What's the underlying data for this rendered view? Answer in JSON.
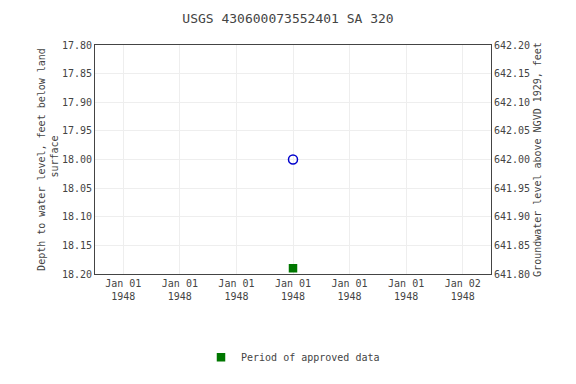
{
  "chart_data": {
    "type": "scatter",
    "title": "USGS 430600073552401 SA 320",
    "y_label": "Depth to water level, feet below land\n surface",
    "y2_label": "Groundwater level above NGVD 1929, feet",
    "categories": [
      "Jan 01\n1948",
      "Jan 01\n1948",
      "Jan 01\n1948",
      "Jan 01\n1948",
      "Jan 01\n1948",
      "Jan 01\n1948",
      "Jan 02\n1948"
    ],
    "series": [
      {
        "color": "#0000cc",
        "marker": "open circle",
        "values": [
          null,
          null,
          null,
          18.0,
          null,
          null,
          null
        ]
      },
      {
        "name": "Period of approved data",
        "color": "#007700",
        "marker": "square",
        "values": [
          null,
          null,
          null,
          18.19,
          null,
          null,
          null
        ]
      }
    ],
    "ylim": [
      18.2,
      17.8
    ],
    "yticks": [
      {
        "value": 17.8,
        "label": "17.80"
      },
      17.85,
      {
        "value": 17.9,
        "label": "17.90"
      },
      17.95,
      {
        "value": 18,
        "label": "18.00"
      },
      18.05,
      {
        "value": 18.1,
        "label": "18.10"
      },
      18.15,
      {
        "value": 18.2,
        "label": "18.20"
      }
    ],
    "y2lim": [
      641.8,
      642.2
    ],
    "y2ticks": [
      {
        "value": 642.2,
        "label": "642.20"
      },
      642.15,
      {
        "value": 642.1,
        "label": "642.10"
      },
      642.05,
      {
        "value": 642,
        "label": "642.00"
      },
      641.95,
      {
        "value": 641.9,
        "label": "641.90"
      },
      641.85,
      {
        "value": 641.8,
        "label": "641.80"
      }
    ],
    "grid": true,
    "legend": "bottom"
  }
}
